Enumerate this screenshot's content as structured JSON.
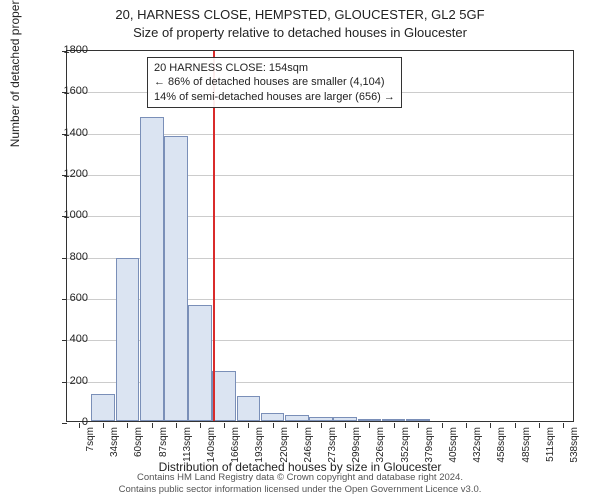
{
  "title": {
    "line1": "20, HARNESS CLOSE, HEMPSTED, GLOUCESTER, GL2 5GF",
    "line2": "Size of property relative to detached houses in Gloucester"
  },
  "chart": {
    "type": "histogram",
    "ylabel": "Number of detached properties",
    "xlabel": "Distribution of detached houses by size in Gloucester",
    "ylim": [
      0,
      1800
    ],
    "ytick_step": 200,
    "yticks": [
      0,
      200,
      400,
      600,
      800,
      1000,
      1200,
      1400,
      1600,
      1800
    ],
    "xticks": [
      "7sqm",
      "34sqm",
      "60sqm",
      "87sqm",
      "113sqm",
      "140sqm",
      "166sqm",
      "193sqm",
      "220sqm",
      "246sqm",
      "273sqm",
      "299sqm",
      "326sqm",
      "352sqm",
      "379sqm",
      "405sqm",
      "432sqm",
      "458sqm",
      "485sqm",
      "511sqm",
      "538sqm"
    ],
    "bar_values": [
      0,
      130,
      790,
      1470,
      1380,
      560,
      240,
      120,
      40,
      30,
      20,
      20,
      10,
      5,
      10,
      0,
      0,
      0,
      0,
      0,
      0
    ],
    "bar_fill": "#dbe4f2",
    "bar_border": "#7a8fb8",
    "grid_color": "#cccccc",
    "background_color": "#ffffff",
    "reference_line": {
      "x_index": 5.54,
      "color": "#d92b2b"
    },
    "annotation": {
      "line1": "20 HARNESS CLOSE: 154sqm",
      "line2": "← 86% of detached houses are smaller (4,104)",
      "line3": "14% of semi-detached houses are larger (656) →"
    }
  },
  "footer": {
    "line1": "Contains HM Land Registry data © Crown copyright and database right 2024.",
    "line2": "Contains public sector information licensed under the Open Government Licence v3.0."
  }
}
